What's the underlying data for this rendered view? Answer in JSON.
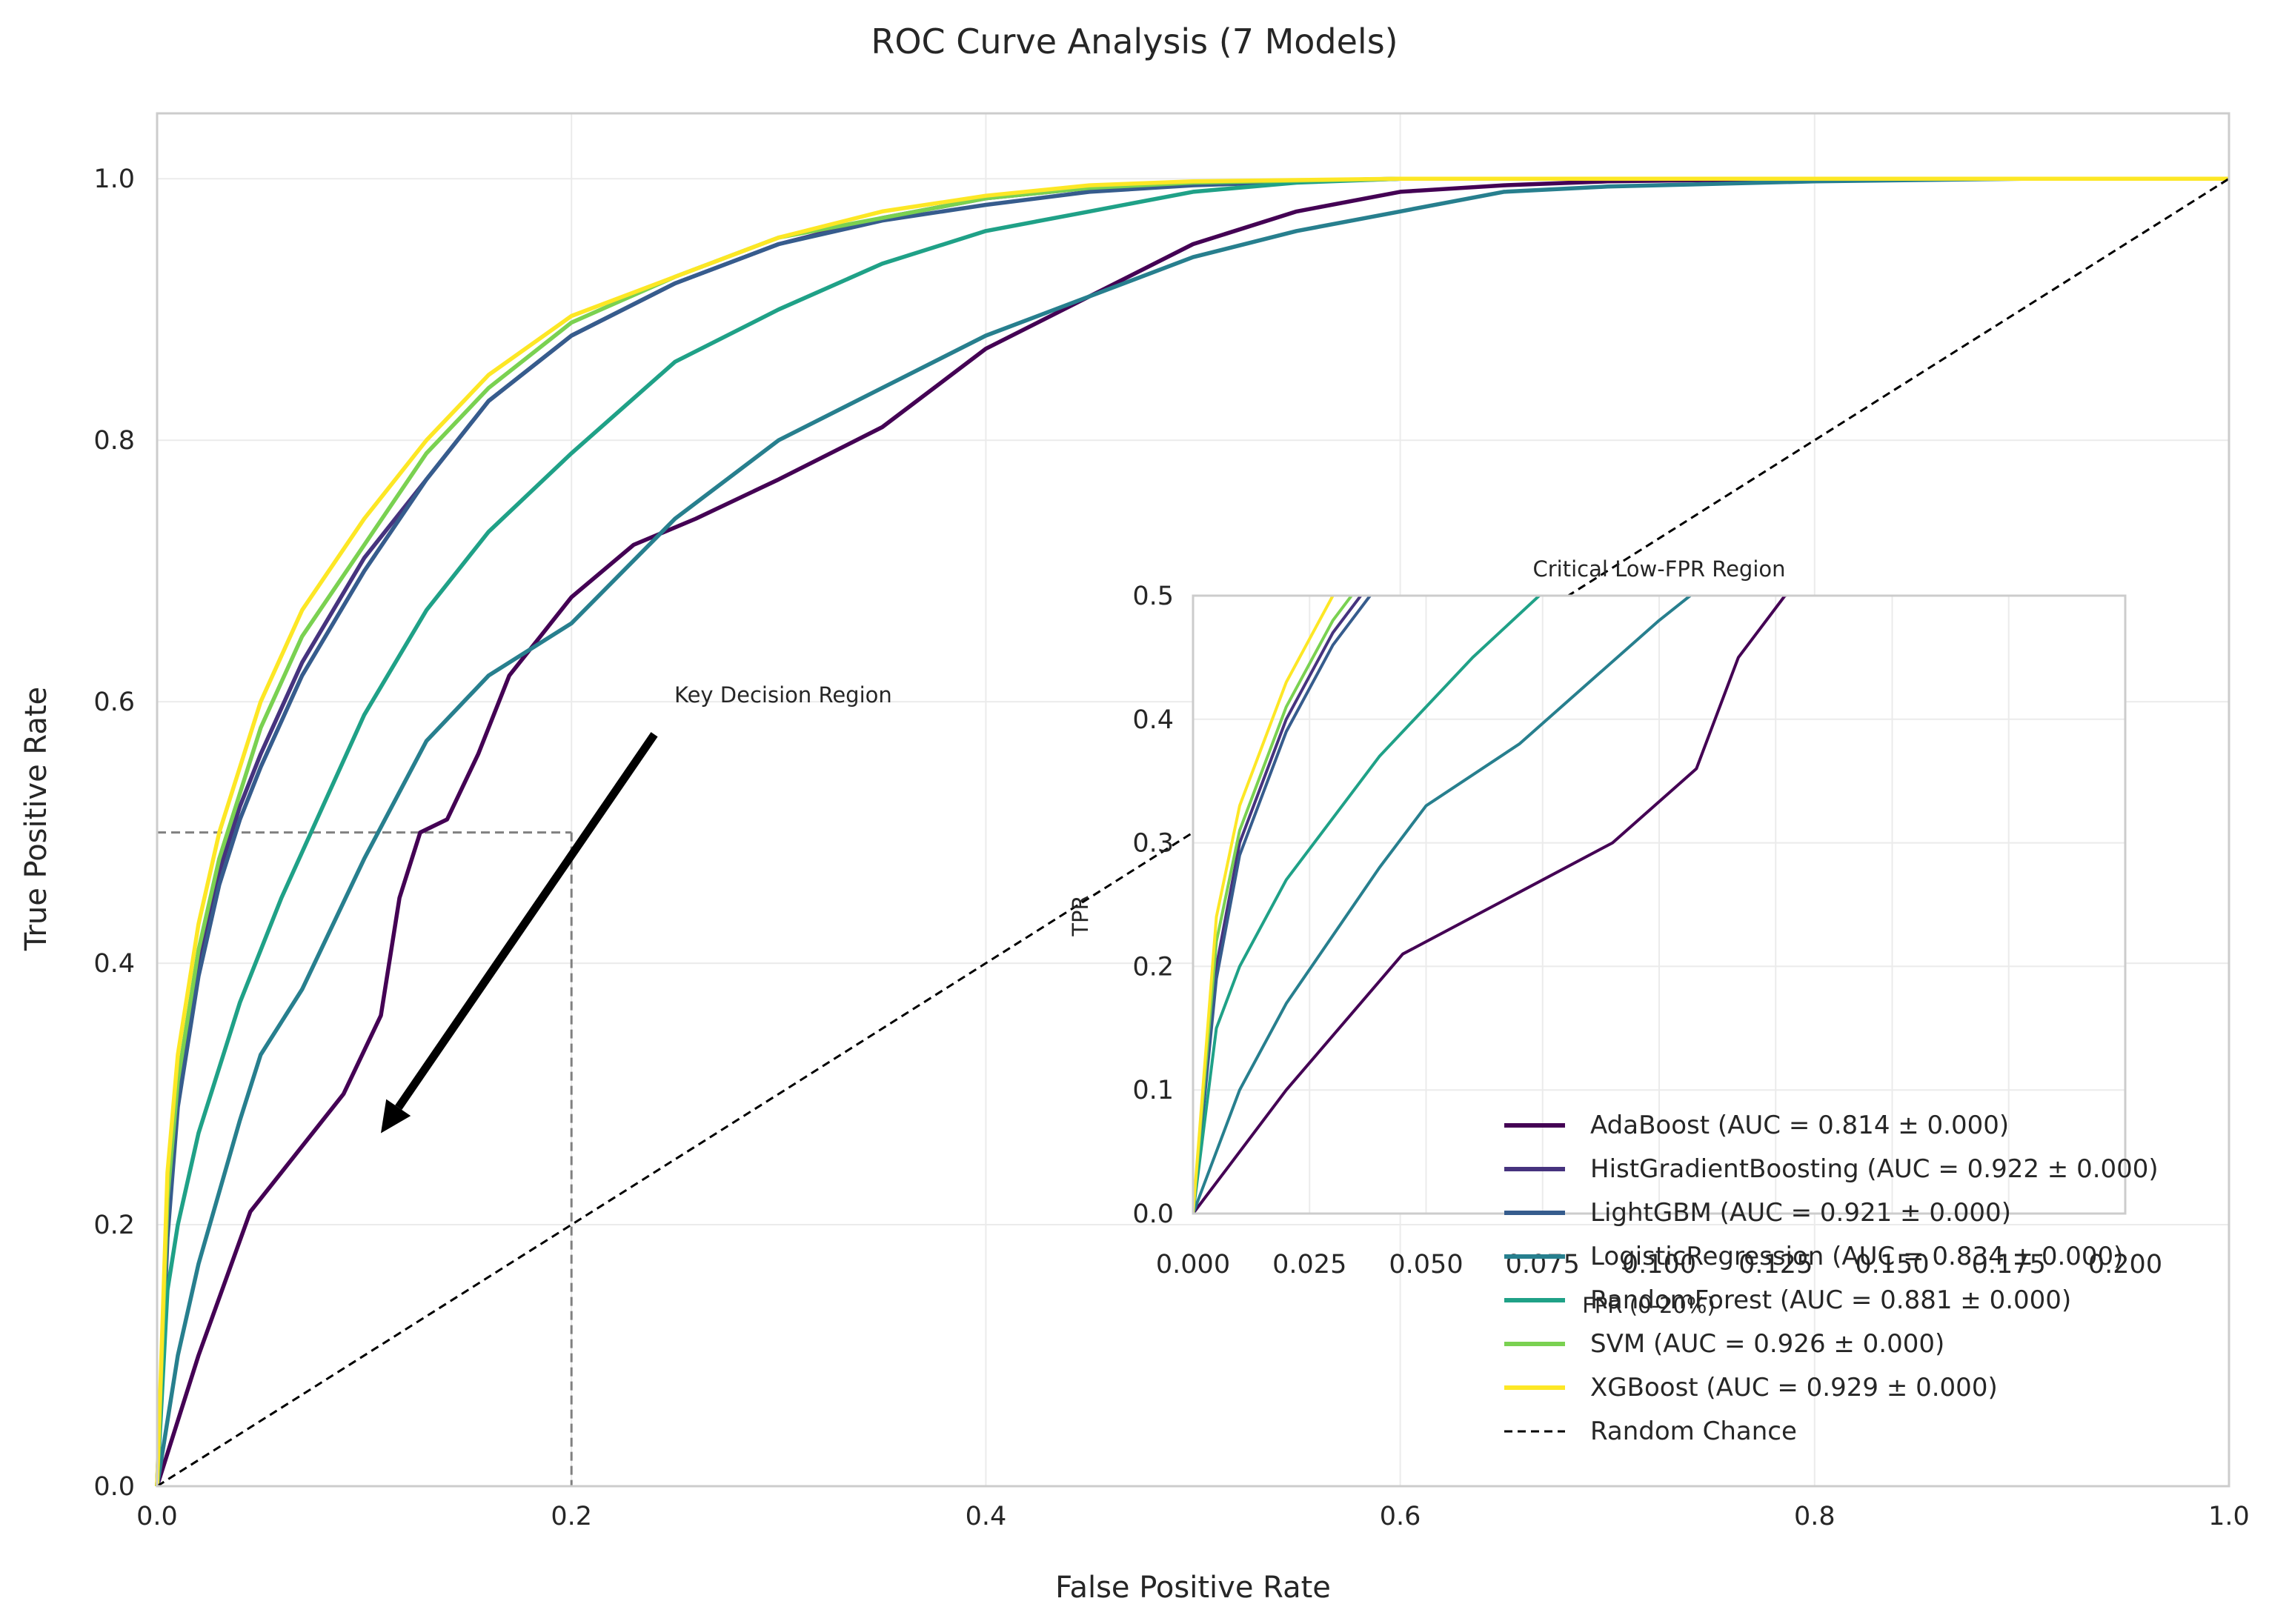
{
  "chart_data": {
    "type": "line",
    "title": "ROC Curve Analysis (7 Models)",
    "xlabel": "False Positive Rate",
    "ylabel": "True Positive Rate",
    "xlim": [
      0,
      1
    ],
    "ylim": [
      0,
      1.05
    ],
    "x_ticks": [
      "0.0",
      "0.2",
      "0.4",
      "0.6",
      "0.8",
      "1.0"
    ],
    "y_ticks": [
      "0.0",
      "0.2",
      "0.4",
      "0.6",
      "0.8",
      "1.0"
    ],
    "grid": true,
    "legend_position": "lower-right",
    "series": [
      {
        "name": "AdaBoost (AUC = 0.814 ± 0.000)",
        "color": "#440154",
        "x": [
          0,
          0.02,
          0.045,
          0.05,
          0.07,
          0.09,
          0.105,
          0.108,
          0.117,
          0.127,
          0.14,
          0.155,
          0.17,
          0.185,
          0.19,
          0.2,
          0.23,
          0.26,
          0.3,
          0.35,
          0.4,
          0.45,
          0.5,
          0.55,
          0.6,
          0.65,
          0.7,
          0.8,
          0.9,
          1.0
        ],
        "y": [
          0,
          0.1,
          0.21,
          0.22,
          0.26,
          0.3,
          0.35,
          0.36,
          0.45,
          0.5,
          0.51,
          0.56,
          0.62,
          0.65,
          0.66,
          0.68,
          0.72,
          0.74,
          0.77,
          0.81,
          0.87,
          0.91,
          0.95,
          0.975,
          0.99,
          0.995,
          0.998,
          1.0,
          1.0,
          1.0
        ]
      },
      {
        "name": "HistGradientBoosting (AUC = 0.922 ± 0.000)",
        "color": "#46337e",
        "x": [
          0,
          0.005,
          0.01,
          0.02,
          0.03,
          0.04,
          0.05,
          0.07,
          0.1,
          0.13,
          0.16,
          0.2,
          0.25,
          0.3,
          0.35,
          0.4,
          0.45,
          0.5,
          0.6,
          0.7,
          0.8,
          1.0
        ],
        "y": [
          0,
          0.2,
          0.3,
          0.4,
          0.47,
          0.52,
          0.56,
          0.63,
          0.71,
          0.77,
          0.83,
          0.88,
          0.92,
          0.95,
          0.97,
          0.985,
          0.993,
          0.997,
          1.0,
          1.0,
          1.0,
          1.0
        ]
      },
      {
        "name": "LightGBM (AUC = 0.921 ± 0.000)",
        "color": "#365c8d",
        "x": [
          0,
          0.005,
          0.01,
          0.02,
          0.03,
          0.04,
          0.05,
          0.07,
          0.1,
          0.13,
          0.16,
          0.2,
          0.25,
          0.3,
          0.35,
          0.4,
          0.45,
          0.5,
          0.6,
          0.7,
          0.8,
          1.0
        ],
        "y": [
          0,
          0.19,
          0.29,
          0.39,
          0.46,
          0.51,
          0.55,
          0.62,
          0.7,
          0.77,
          0.83,
          0.88,
          0.92,
          0.95,
          0.968,
          0.98,
          0.99,
          0.995,
          1.0,
          1.0,
          1.0,
          1.0
        ]
      },
      {
        "name": "LogisticRegression (AUC = 0.834 ± 0.000)",
        "color": "#277f8e",
        "x": [
          0,
          0.01,
          0.02,
          0.04,
          0.05,
          0.07,
          0.1,
          0.13,
          0.16,
          0.2,
          0.25,
          0.3,
          0.35,
          0.4,
          0.45,
          0.5,
          0.55,
          0.6,
          0.65,
          0.7,
          0.8,
          0.9,
          1.0
        ],
        "y": [
          0,
          0.1,
          0.17,
          0.28,
          0.33,
          0.38,
          0.48,
          0.57,
          0.62,
          0.66,
          0.74,
          0.8,
          0.84,
          0.88,
          0.91,
          0.94,
          0.96,
          0.975,
          0.99,
          0.994,
          0.998,
          1.0,
          1.0
        ]
      },
      {
        "name": "RandomForest (AUC = 0.881 ± 0.000)",
        "color": "#1fa187",
        "x": [
          0,
          0.005,
          0.01,
          0.02,
          0.04,
          0.06,
          0.08,
          0.1,
          0.13,
          0.16,
          0.2,
          0.25,
          0.3,
          0.35,
          0.4,
          0.45,
          0.5,
          0.55,
          0.6,
          0.7,
          0.8,
          1.0
        ],
        "y": [
          0,
          0.15,
          0.2,
          0.27,
          0.37,
          0.45,
          0.52,
          0.59,
          0.67,
          0.73,
          0.79,
          0.86,
          0.9,
          0.935,
          0.96,
          0.975,
          0.99,
          0.997,
          1.0,
          1.0,
          1.0,
          1.0
        ]
      },
      {
        "name": "SVM (AUC = 0.926 ± 0.000)",
        "color": "#7ad151",
        "x": [
          0,
          0.005,
          0.01,
          0.02,
          0.03,
          0.04,
          0.05,
          0.07,
          0.1,
          0.13,
          0.16,
          0.2,
          0.25,
          0.3,
          0.35,
          0.4,
          0.45,
          0.5,
          0.6,
          0.7,
          0.8,
          1.0
        ],
        "y": [
          0,
          0.22,
          0.31,
          0.41,
          0.48,
          0.53,
          0.58,
          0.65,
          0.72,
          0.79,
          0.84,
          0.89,
          0.925,
          0.955,
          0.97,
          0.985,
          0.993,
          0.997,
          1.0,
          1.0,
          1.0,
          1.0
        ]
      },
      {
        "name": "XGBoost (AUC = 0.929 ± 0.000)",
        "color": "#fde725",
        "x": [
          0,
          0.005,
          0.01,
          0.02,
          0.03,
          0.04,
          0.05,
          0.07,
          0.1,
          0.13,
          0.16,
          0.2,
          0.25,
          0.3,
          0.35,
          0.4,
          0.45,
          0.5,
          0.6,
          0.7,
          0.8,
          1.0
        ],
        "y": [
          0,
          0.24,
          0.33,
          0.43,
          0.5,
          0.55,
          0.6,
          0.67,
          0.74,
          0.8,
          0.85,
          0.895,
          0.925,
          0.955,
          0.975,
          0.987,
          0.995,
          0.998,
          1.0,
          1.0,
          1.0,
          1.0
        ]
      },
      {
        "name": "Random Chance",
        "color": "#000000",
        "dashed": true,
        "x": [
          0,
          1
        ],
        "y": [
          0,
          1
        ]
      }
    ],
    "reference_lines": {
      "x": 0.2,
      "y": 0.5
    },
    "annotation": {
      "text": "Key Decision Region",
      "from": [
        0.24,
        0.575
      ],
      "to": [
        0.108,
        0.27
      ]
    },
    "inset": {
      "title": "Critical Low-FPR Region",
      "xlabel": "FPR (0-20%)",
      "ylabel": "TPR",
      "xlim": [
        0,
        0.2
      ],
      "ylim": [
        0,
        0.5
      ],
      "x_ticks": [
        "0.000",
        "0.025",
        "0.050",
        "0.075",
        "0.100",
        "0.125",
        "0.150",
        "0.175",
        "0.200"
      ],
      "y_ticks": [
        "0.0",
        "0.1",
        "0.2",
        "0.3",
        "0.4",
        "0.5"
      ]
    }
  }
}
